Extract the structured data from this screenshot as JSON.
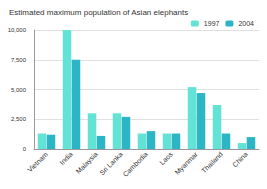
{
  "chart_data": {
    "type": "bar",
    "title": "Estimated maximum population of Asian elephants",
    "categories": [
      "Vietnam",
      "India",
      "Malaysia",
      "Sri Lanka",
      "Cambodia",
      "Laos",
      "Myanmar",
      "Thailand",
      "China"
    ],
    "series": [
      {
        "name": "1997",
        "color": "#62e3d5",
        "values": [
          1300,
          10000,
          3000,
          3000,
          1300,
          1300,
          5200,
          3700,
          500
        ]
      },
      {
        "name": "2004",
        "color": "#2bb5c5",
        "values": [
          1200,
          7500,
          1100,
          2700,
          1500,
          1300,
          4700,
          1300,
          1000
        ]
      }
    ],
    "ylim": [
      0,
      10000
    ],
    "yticks": [
      0,
      {
        "value": 2500,
        "label": "2,500"
      },
      {
        "value": 5000,
        "label": "5,000"
      },
      {
        "value": 7500,
        "label": "7,500"
      },
      {
        "value": 10000,
        "label": "10,000"
      }
    ],
    "grid": true,
    "legend": "top-right"
  }
}
